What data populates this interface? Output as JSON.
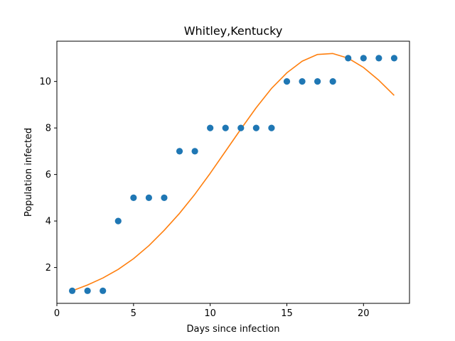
{
  "chart_data": {
    "type": "scatter",
    "title": "Whitley,Kentucky",
    "xlabel": "Days since infection",
    "ylabel": "Population infected",
    "xlim": [
      0,
      23
    ],
    "ylim": [
      0.46,
      11.73
    ],
    "xticks": [
      0,
      5,
      10,
      15,
      20
    ],
    "yticks": [
      2,
      4,
      6,
      8,
      10
    ],
    "grid": false,
    "legend": "none",
    "series": [
      {
        "type": "scatter",
        "color": "#1f77b4",
        "x": [
          1,
          2,
          3,
          4,
          5,
          6,
          7,
          8,
          9,
          10,
          11,
          12,
          13,
          14,
          15,
          16,
          17,
          18,
          19,
          20,
          21,
          22
        ],
        "y": [
          1,
          1,
          1,
          4,
          5,
          5,
          5,
          7,
          7,
          8,
          8,
          8,
          8,
          8,
          10,
          10,
          10,
          10,
          11,
          11,
          11,
          11
        ]
      },
      {
        "type": "line",
        "color": "#ff7f0e",
        "x": [
          1,
          2,
          3,
          4,
          5,
          6,
          7,
          8,
          9,
          10,
          11,
          12,
          13,
          14,
          15,
          16,
          17,
          18,
          19,
          20,
          21,
          22
        ],
        "y": [
          1.0,
          1.25,
          1.55,
          1.92,
          2.38,
          2.94,
          3.6,
          4.33,
          5.15,
          6.05,
          7.0,
          7.95,
          8.87,
          9.7,
          10.37,
          10.87,
          11.16,
          11.2,
          11.0,
          10.6,
          10.05,
          9.4
        ]
      }
    ]
  }
}
